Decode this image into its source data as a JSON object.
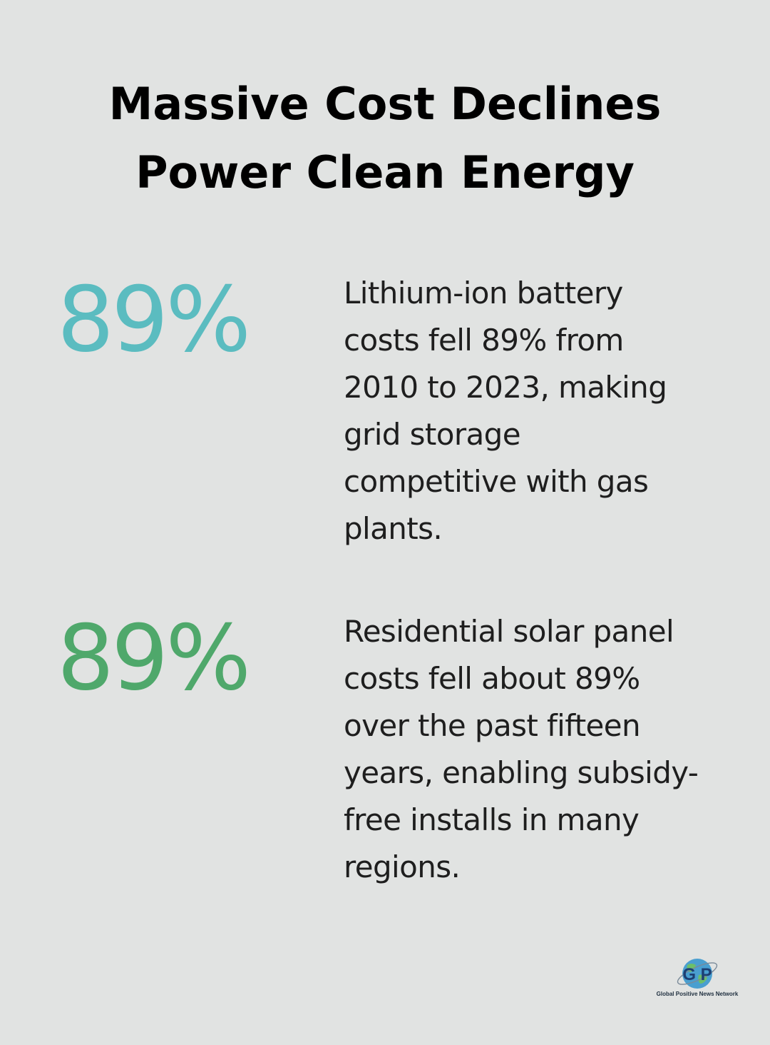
{
  "title": "Massive Cost Declines\nPower Clean Energy",
  "colors": {
    "background": "#e1e3e2",
    "stat_1": "#5bbcc0",
    "stat_2": "#4fa86b"
  },
  "stats": [
    {
      "value": "89%",
      "description": "Lithium-ion battery\ncosts fell 89% from\n2010 to 2023, making\ngrid storage\ncompetitive with gas\nplants."
    },
    {
      "value": "89%",
      "description": "Residential solar panel\ncosts fell about 89%\nover the past fifteen\nyears, enabling subsidy-\nfree installs in many\nregions."
    }
  ],
  "logo": {
    "letters": "G P",
    "caption": "Global Positive News Network"
  }
}
